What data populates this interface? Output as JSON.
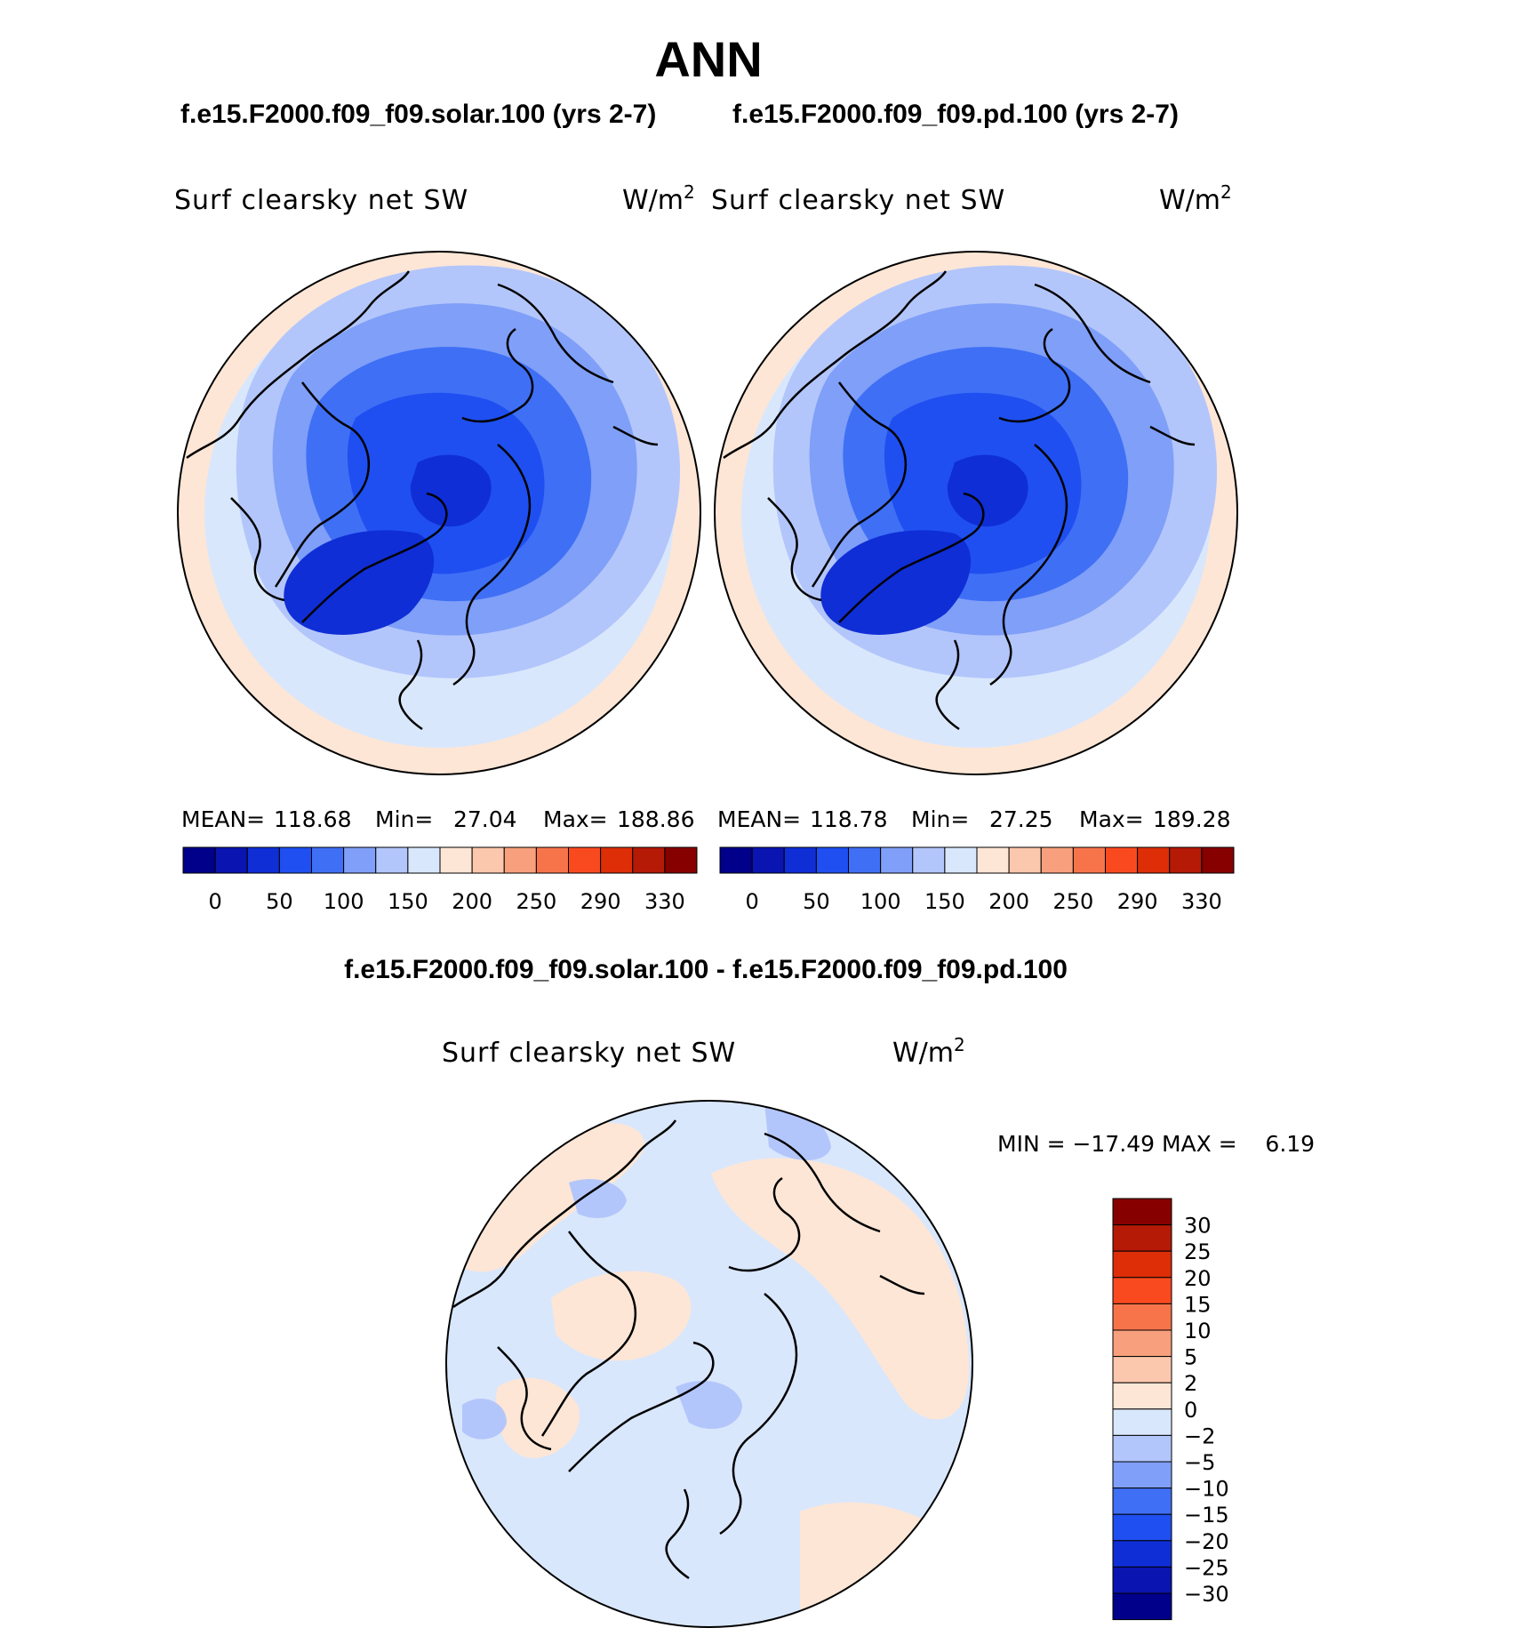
{
  "title": "ANN",
  "colors": {
    "seq": [
      "#00008a",
      "#0a14b0",
      "#0f2ed6",
      "#1f4ff0",
      "#3f6ff5",
      "#7f9ff8",
      "#b3c6fb",
      "#d9e7fc",
      "#fde6d6",
      "#fbc7ad",
      "#f8a07d",
      "#f7744b",
      "#f94a1f",
      "#dd2e08",
      "#b41a06",
      "#870000"
    ],
    "diff": [
      "#00008a",
      "#0a14b0",
      "#0f2ed6",
      "#1f4ff0",
      "#3f6ff5",
      "#7f9ff8",
      "#b3c6fb",
      "#d9e7fc",
      "#fde6d6",
      "#fbc7ad",
      "#f8a07d",
      "#f7744b",
      "#f94a1f",
      "#dd2e08",
      "#b41a06",
      "#870000"
    ]
  },
  "panels": [
    {
      "case_title": "f.e15.F2000.f09_f09.solar.100 (yrs 2-7)",
      "var_label": "Surf clearsky net SW",
      "units": "W/m",
      "units_sup": "2",
      "stats": {
        "mean_label": "MEAN=",
        "mean": "118.68",
        "min_label": "Min=",
        "min": "27.04",
        "max_label": "Max=",
        "max": "188.86"
      },
      "colorbar_ticks": [
        "0",
        "50",
        "100",
        "150",
        "200",
        "250",
        "290",
        "330"
      ]
    },
    {
      "case_title": "f.e15.F2000.f09_f09.pd.100 (yrs 2-7)",
      "var_label": "Surf clearsky net SW",
      "units": "W/m",
      "units_sup": "2",
      "stats": {
        "mean_label": "MEAN=",
        "mean": "118.78",
        "min_label": "Min=",
        "min": "27.25",
        "max_label": "Max=",
        "max": "189.28"
      },
      "colorbar_ticks": [
        "0",
        "50",
        "100",
        "150",
        "200",
        "250",
        "290",
        "330"
      ]
    }
  ],
  "diff_panel": {
    "case_title": "f.e15.F2000.f09_f09.solar.100 - f.e15.F2000.f09_f09.pd.100",
    "var_label": "Surf clearsky net SW",
    "units": "W/m",
    "units_sup": "2",
    "minmax_text": "MIN = −17.49 MAX =    6.19",
    "colorbar_ticks": [
      "30",
      "25",
      "20",
      "15",
      "10",
      "5",
      "2",
      "0",
      "−2",
      "−5",
      "−10",
      "−15",
      "−20",
      "−25",
      "−30"
    ]
  },
  "chart_data": [
    {
      "type": "heatmap",
      "projection": "north polar stereographic",
      "title": "f.e15.F2000.f09_f09.solar.100 (yrs 2-7)",
      "variable": "Surf clearsky net SW",
      "units": "W/m2",
      "mean": 118.68,
      "min": 27.04,
      "max": 188.86,
      "contour_levels": [
        0,
        25,
        50,
        75,
        100,
        125,
        150,
        175,
        200,
        225,
        250,
        270,
        290,
        310,
        330
      ]
    },
    {
      "type": "heatmap",
      "projection": "north polar stereographic",
      "title": "f.e15.F2000.f09_f09.pd.100 (yrs 2-7)",
      "variable": "Surf clearsky net SW",
      "units": "W/m2",
      "mean": 118.78,
      "min": 27.25,
      "max": 189.28,
      "contour_levels": [
        0,
        25,
        50,
        75,
        100,
        125,
        150,
        175,
        200,
        225,
        250,
        270,
        290,
        310,
        330
      ]
    },
    {
      "type": "heatmap",
      "projection": "north polar stereographic",
      "title": "f.e15.F2000.f09_f09.solar.100 - f.e15.F2000.f09_f09.pd.100",
      "variable": "Surf clearsky net SW",
      "units": "W/m2",
      "min": -17.49,
      "max": 6.19,
      "contour_levels": [
        -30,
        -25,
        -20,
        -15,
        -10,
        -5,
        -2,
        0,
        2,
        5,
        10,
        15,
        20,
        25,
        30
      ]
    }
  ]
}
